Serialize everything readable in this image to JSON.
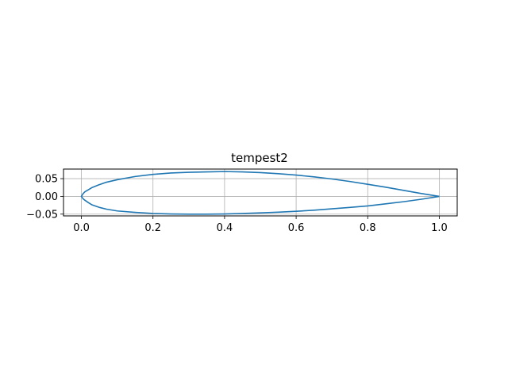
{
  "chart_data": {
    "type": "line",
    "title": "tempest2",
    "xlabel": "",
    "ylabel": "",
    "xlim": [
      -0.05,
      1.05
    ],
    "ylim": [
      -0.055,
      0.077
    ],
    "grid": true,
    "xticks": [
      0.0,
      0.2,
      0.4,
      0.6,
      0.8,
      1.0
    ],
    "xtick_labels": [
      "0.0",
      "0.2",
      "0.4",
      "0.6",
      "0.8",
      "1.0"
    ],
    "yticks": [
      0.05,
      0.0,
      -0.05
    ],
    "ytick_labels": [
      "0.05",
      "0.00",
      "−0.05"
    ],
    "line_color": "#1f77b4",
    "grid_color": "#b0b0b0",
    "series": [
      {
        "x": [
          1.0,
          0.95,
          0.9,
          0.85,
          0.8,
          0.75,
          0.7,
          0.65,
          0.6,
          0.55,
          0.5,
          0.45,
          0.4,
          0.35,
          0.3,
          0.25,
          0.2,
          0.15,
          0.1,
          0.07,
          0.05,
          0.03,
          0.02,
          0.01,
          0.005,
          0.0,
          0.005,
          0.01,
          0.02,
          0.03,
          0.05,
          0.07,
          0.1,
          0.15,
          0.2,
          0.25,
          0.3,
          0.35,
          0.4,
          0.45,
          0.5,
          0.55,
          0.6,
          0.65,
          0.7,
          0.75,
          0.8,
          0.85,
          0.9,
          0.95,
          1.0
        ],
        "y": [
          0.0,
          0.008,
          0.017,
          0.026,
          0.034,
          0.042,
          0.049,
          0.055,
          0.06,
          0.064,
          0.067,
          0.069,
          0.07,
          0.069,
          0.068,
          0.066,
          0.062,
          0.056,
          0.047,
          0.04,
          0.033,
          0.025,
          0.019,
          0.013,
          0.008,
          0.0,
          -0.007,
          -0.011,
          -0.018,
          -0.024,
          -0.031,
          -0.036,
          -0.041,
          -0.045,
          -0.048,
          -0.0495,
          -0.05,
          -0.05,
          -0.0495,
          -0.048,
          -0.0465,
          -0.0445,
          -0.042,
          -0.039,
          -0.035,
          -0.031,
          -0.027,
          -0.021,
          -0.015,
          -0.008,
          0.0
        ]
      }
    ]
  }
}
